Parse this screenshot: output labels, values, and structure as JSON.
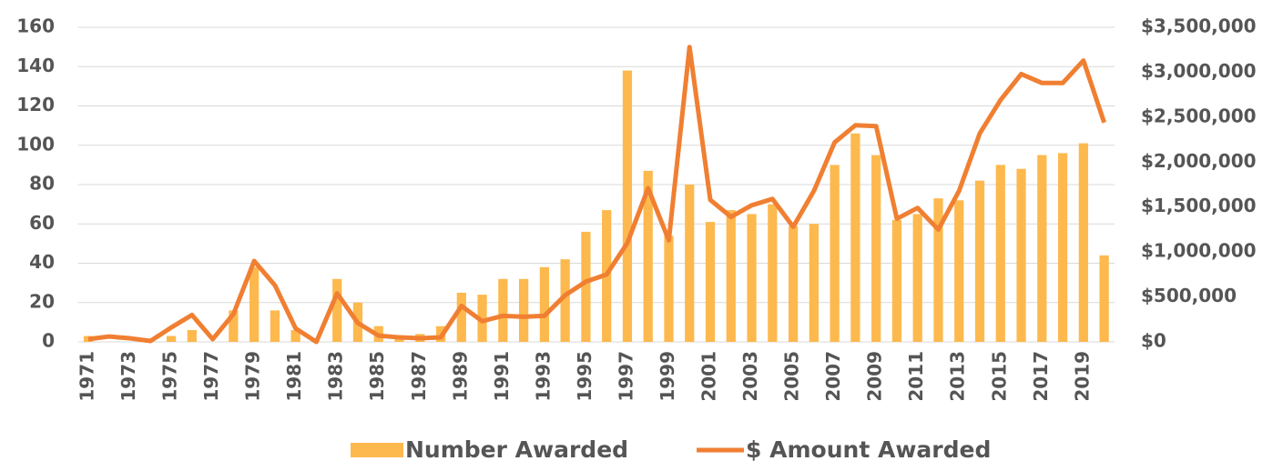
{
  "chart_data": {
    "type": "bar_line",
    "categories": [
      "1971",
      null,
      "1973",
      null,
      "1975",
      null,
      "1977",
      null,
      "1979",
      null,
      "1981",
      null,
      "1983",
      null,
      "1985",
      null,
      "1987",
      null,
      "1989",
      null,
      "1991",
      null,
      "1993",
      null,
      "1995",
      null,
      "1997",
      null,
      "1999",
      null,
      "2001",
      null,
      "2003",
      null,
      "2005",
      null,
      "2007",
      null,
      "2009",
      null,
      "2011",
      null,
      "2013",
      null,
      "2015",
      null,
      "2017",
      null,
      "2019",
      null
    ],
    "series": [
      {
        "name": "Number Awarded",
        "type": "bar",
        "color": "#fdb94e",
        "axis": "y",
        "values": [
          3,
          0,
          0,
          0,
          3,
          6,
          0,
          16,
          38,
          16,
          6,
          0,
          32,
          20,
          8,
          3,
          4,
          8,
          25,
          24,
          32,
          32,
          38,
          42,
          56,
          67,
          138,
          87,
          54,
          80,
          61,
          67,
          65,
          70,
          59,
          60,
          90,
          106,
          95,
          62,
          65,
          73,
          72,
          82,
          90,
          88,
          95,
          96,
          101,
          44
        ]
      },
      {
        "name": "$ Amount Awarded",
        "type": "line",
        "color": "#f07f32",
        "axis": "y2",
        "values": [
          30000,
          60000,
          40000,
          10000,
          160000,
          300000,
          30000,
          310000,
          900000,
          630000,
          150000,
          0,
          540000,
          210000,
          70000,
          50000,
          40000,
          50000,
          400000,
          230000,
          290000,
          280000,
          290000,
          520000,
          670000,
          750000,
          1100000,
          1710000,
          1130000,
          3280000,
          1580000,
          1390000,
          1520000,
          1590000,
          1280000,
          1680000,
          2220000,
          2410000,
          2400000,
          1370000,
          1490000,
          1250000,
          1680000,
          2320000,
          2690000,
          2980000,
          2880000,
          2880000,
          3130000,
          2440000
        ]
      }
    ],
    "ylim": [
      0,
      160
    ],
    "yticks": [
      0,
      20,
      40,
      60,
      80,
      100,
      120,
      140,
      160
    ],
    "y2lim": [
      0,
      3500000
    ],
    "y2ticks": [
      {
        "value": 0,
        "label": "$0"
      },
      {
        "value": 500000,
        "label": "$500,000"
      },
      {
        "value": 1000000,
        "label": "$1,000,000"
      },
      {
        "value": 1500000,
        "label": "$1,500,000"
      },
      {
        "value": 2000000,
        "label": "$2,000,000"
      },
      {
        "value": 2500000,
        "label": "$2,500,000"
      },
      {
        "value": 3000000,
        "label": "$3,000,000"
      },
      {
        "value": 3500000,
        "label": "$3,500,000"
      }
    ],
    "grid": true,
    "legend": "bottom"
  }
}
